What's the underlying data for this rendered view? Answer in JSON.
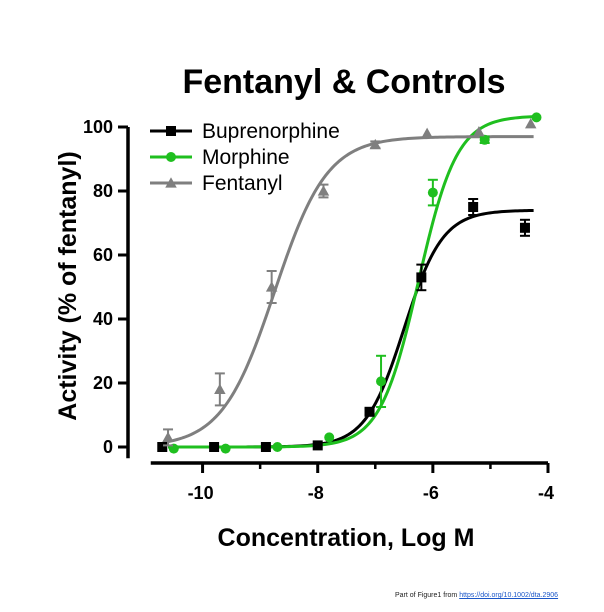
{
  "chart_data": {
    "type": "scatter",
    "title": "Fentanyl & Controls",
    "xlabel": "Concentration, Log M",
    "ylabel": "Activity (% of fentanyl)",
    "xlim": [
      -11,
      -4
    ],
    "ylim": [
      0,
      100
    ],
    "xticks": [
      -10,
      -8,
      -6,
      -4
    ],
    "yticks": [
      0,
      20,
      40,
      60,
      80,
      100
    ],
    "grid": false,
    "legend_position": "top-left",
    "series": [
      {
        "name": "Buprenorphine",
        "color": "#000000",
        "marker": "square",
        "points": [
          {
            "x": -10.7,
            "y": 0,
            "err": 0
          },
          {
            "x": -9.8,
            "y": 0,
            "err": 0
          },
          {
            "x": -8.9,
            "y": 0,
            "err": 0
          },
          {
            "x": -8.0,
            "y": 0.5,
            "err": 0
          },
          {
            "x": -7.1,
            "y": 11,
            "err": 1
          },
          {
            "x": -6.2,
            "y": 53,
            "err": 4
          },
          {
            "x": -5.3,
            "y": 75,
            "err": 2.5
          },
          {
            "x": -4.4,
            "y": 68.5,
            "err": 2.5
          }
        ],
        "fit": {
          "bottom": 0,
          "top": 74,
          "log_ec50": -6.5,
          "hill": 1.3
        }
      },
      {
        "name": "Morphine",
        "color": "#1fbf1f",
        "marker": "circle",
        "points": [
          {
            "x": -10.5,
            "y": -0.5,
            "err": 0
          },
          {
            "x": -9.6,
            "y": -0.5,
            "err": 0
          },
          {
            "x": -8.7,
            "y": 0,
            "err": 0
          },
          {
            "x": -7.8,
            "y": 3,
            "err": 0
          },
          {
            "x": -6.9,
            "y": 20.5,
            "err": 8
          },
          {
            "x": -6.0,
            "y": 79.5,
            "err": 4
          },
          {
            "x": -5.1,
            "y": 96,
            "err": 1
          },
          {
            "x": -4.2,
            "y": 103,
            "err": 0
          }
        ],
        "fit": {
          "bottom": 0,
          "top": 103.5,
          "log_ec50": -6.25,
          "hill": 1.3
        }
      },
      {
        "name": "Fentanyl",
        "color": "#7f7f7f",
        "marker": "triangle",
        "points": [
          {
            "x": -10.6,
            "y": 3,
            "err": 2.5
          },
          {
            "x": -9.7,
            "y": 18,
            "err": 5
          },
          {
            "x": -8.8,
            "y": 50,
            "err": 5
          },
          {
            "x": -7.9,
            "y": 80,
            "err": 2
          },
          {
            "x": -7.0,
            "y": 94.5,
            "err": 1
          },
          {
            "x": -6.1,
            "y": 98,
            "err": 0
          },
          {
            "x": -5.2,
            "y": 98.5,
            "err": 0
          },
          {
            "x": -4.3,
            "y": 101,
            "err": 0
          }
        ],
        "fit": {
          "bottom": 0,
          "top": 97,
          "log_ec50": -8.75,
          "hill": 0.95
        }
      }
    ]
  },
  "caption": {
    "text": "Part of Figure1 from ",
    "link": "https://doi.org/10.1002/dta.2906"
  }
}
